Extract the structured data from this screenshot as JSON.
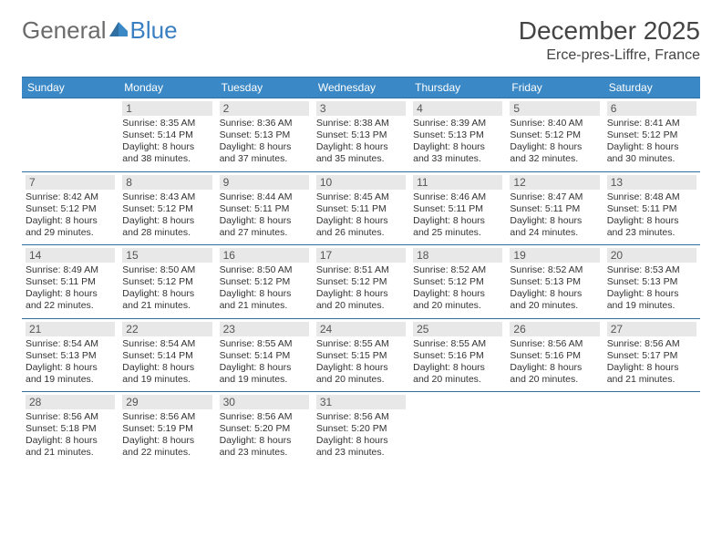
{
  "brand": {
    "general": "General",
    "blue": "Blue"
  },
  "title": "December 2025",
  "location": "Erce-pres-Liffre, France",
  "colors": {
    "header_bg": "#3a88c6",
    "rule": "#2f6ea0",
    "daynum_bg": "#e8e8e8",
    "logo_grey": "#6b6b6b",
    "logo_blue": "#3a7fc2"
  },
  "weekdays": [
    "Sunday",
    "Monday",
    "Tuesday",
    "Wednesday",
    "Thursday",
    "Friday",
    "Saturday"
  ],
  "start_offset": 1,
  "days": [
    {
      "n": 1,
      "sunrise": "8:35 AM",
      "sunset": "5:14 PM",
      "daylight": "8 hours and 38 minutes."
    },
    {
      "n": 2,
      "sunrise": "8:36 AM",
      "sunset": "5:13 PM",
      "daylight": "8 hours and 37 minutes."
    },
    {
      "n": 3,
      "sunrise": "8:38 AM",
      "sunset": "5:13 PM",
      "daylight": "8 hours and 35 minutes."
    },
    {
      "n": 4,
      "sunrise": "8:39 AM",
      "sunset": "5:13 PM",
      "daylight": "8 hours and 33 minutes."
    },
    {
      "n": 5,
      "sunrise": "8:40 AM",
      "sunset": "5:12 PM",
      "daylight": "8 hours and 32 minutes."
    },
    {
      "n": 6,
      "sunrise": "8:41 AM",
      "sunset": "5:12 PM",
      "daylight": "8 hours and 30 minutes."
    },
    {
      "n": 7,
      "sunrise": "8:42 AM",
      "sunset": "5:12 PM",
      "daylight": "8 hours and 29 minutes."
    },
    {
      "n": 8,
      "sunrise": "8:43 AM",
      "sunset": "5:12 PM",
      "daylight": "8 hours and 28 minutes."
    },
    {
      "n": 9,
      "sunrise": "8:44 AM",
      "sunset": "5:11 PM",
      "daylight": "8 hours and 27 minutes."
    },
    {
      "n": 10,
      "sunrise": "8:45 AM",
      "sunset": "5:11 PM",
      "daylight": "8 hours and 26 minutes."
    },
    {
      "n": 11,
      "sunrise": "8:46 AM",
      "sunset": "5:11 PM",
      "daylight": "8 hours and 25 minutes."
    },
    {
      "n": 12,
      "sunrise": "8:47 AM",
      "sunset": "5:11 PM",
      "daylight": "8 hours and 24 minutes."
    },
    {
      "n": 13,
      "sunrise": "8:48 AM",
      "sunset": "5:11 PM",
      "daylight": "8 hours and 23 minutes."
    },
    {
      "n": 14,
      "sunrise": "8:49 AM",
      "sunset": "5:11 PM",
      "daylight": "8 hours and 22 minutes."
    },
    {
      "n": 15,
      "sunrise": "8:50 AM",
      "sunset": "5:12 PM",
      "daylight": "8 hours and 21 minutes."
    },
    {
      "n": 16,
      "sunrise": "8:50 AM",
      "sunset": "5:12 PM",
      "daylight": "8 hours and 21 minutes."
    },
    {
      "n": 17,
      "sunrise": "8:51 AM",
      "sunset": "5:12 PM",
      "daylight": "8 hours and 20 minutes."
    },
    {
      "n": 18,
      "sunrise": "8:52 AM",
      "sunset": "5:12 PM",
      "daylight": "8 hours and 20 minutes."
    },
    {
      "n": 19,
      "sunrise": "8:52 AM",
      "sunset": "5:13 PM",
      "daylight": "8 hours and 20 minutes."
    },
    {
      "n": 20,
      "sunrise": "8:53 AM",
      "sunset": "5:13 PM",
      "daylight": "8 hours and 19 minutes."
    },
    {
      "n": 21,
      "sunrise": "8:54 AM",
      "sunset": "5:13 PM",
      "daylight": "8 hours and 19 minutes."
    },
    {
      "n": 22,
      "sunrise": "8:54 AM",
      "sunset": "5:14 PM",
      "daylight": "8 hours and 19 minutes."
    },
    {
      "n": 23,
      "sunrise": "8:55 AM",
      "sunset": "5:14 PM",
      "daylight": "8 hours and 19 minutes."
    },
    {
      "n": 24,
      "sunrise": "8:55 AM",
      "sunset": "5:15 PM",
      "daylight": "8 hours and 20 minutes."
    },
    {
      "n": 25,
      "sunrise": "8:55 AM",
      "sunset": "5:16 PM",
      "daylight": "8 hours and 20 minutes."
    },
    {
      "n": 26,
      "sunrise": "8:56 AM",
      "sunset": "5:16 PM",
      "daylight": "8 hours and 20 minutes."
    },
    {
      "n": 27,
      "sunrise": "8:56 AM",
      "sunset": "5:17 PM",
      "daylight": "8 hours and 21 minutes."
    },
    {
      "n": 28,
      "sunrise": "8:56 AM",
      "sunset": "5:18 PM",
      "daylight": "8 hours and 21 minutes."
    },
    {
      "n": 29,
      "sunrise": "8:56 AM",
      "sunset": "5:19 PM",
      "daylight": "8 hours and 22 minutes."
    },
    {
      "n": 30,
      "sunrise": "8:56 AM",
      "sunset": "5:20 PM",
      "daylight": "8 hours and 23 minutes."
    },
    {
      "n": 31,
      "sunrise": "8:56 AM",
      "sunset": "5:20 PM",
      "daylight": "8 hours and 23 minutes."
    }
  ],
  "labels": {
    "sunrise": "Sunrise: ",
    "sunset": "Sunset: ",
    "daylight": "Daylight: "
  }
}
